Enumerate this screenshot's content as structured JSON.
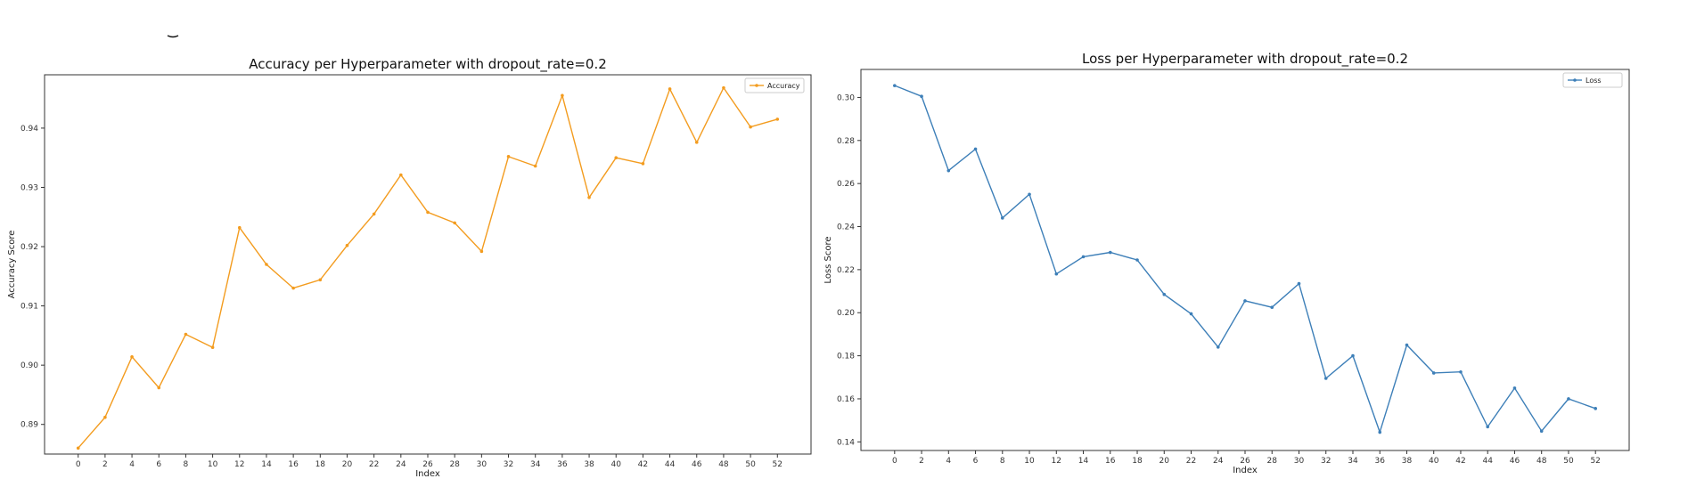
{
  "colors": {
    "accuracy": "#f39c1f",
    "loss": "#3d7fb8"
  },
  "chart_data": [
    {
      "type": "line",
      "title": "Accuracy per Hyperparameter with dropout_rate=0.2",
      "xlabel": "Index",
      "ylabel": "Accuracy Score",
      "legend": "top-right",
      "grid": false,
      "xlim": [
        -2.5,
        54.5
      ],
      "ylim": [
        0.885,
        0.949
      ],
      "x_ticks": [
        0,
        2,
        4,
        6,
        8,
        10,
        12,
        14,
        16,
        18,
        20,
        22,
        24,
        26,
        28,
        30,
        32,
        34,
        36,
        38,
        40,
        42,
        44,
        46,
        48,
        50,
        52
      ],
      "y_ticks": [
        0.89,
        0.9,
        0.91,
        0.92,
        0.93,
        0.94
      ],
      "y_tick_labels": [
        "0.89",
        "0.90",
        "0.91",
        "0.92",
        "0.93",
        "0.94"
      ],
      "series": [
        {
          "name": "Accuracy",
          "x": [
            0,
            2,
            4,
            6,
            8,
            10,
            12,
            14,
            16,
            18,
            20,
            22,
            24,
            26,
            28,
            30,
            32,
            34,
            36,
            38,
            40,
            42,
            44,
            46,
            48,
            50,
            52
          ],
          "values": [
            0.886,
            0.8912,
            0.9014,
            0.8962,
            0.9052,
            0.903,
            0.9232,
            0.917,
            0.913,
            0.9144,
            0.9202,
            0.9255,
            0.9321,
            0.9258,
            0.924,
            0.9192,
            0.9352,
            0.9336,
            0.9455,
            0.9283,
            0.935,
            0.934,
            0.9466,
            0.9376,
            0.9468,
            0.9402,
            0.9415
          ]
        }
      ]
    },
    {
      "type": "line",
      "title": "Loss per Hyperparameter with dropout_rate=0.2",
      "xlabel": "Index",
      "ylabel": "Loss Score",
      "legend": "top-right",
      "grid": false,
      "xlim": [
        -2.5,
        54.5
      ],
      "ylim": [
        0.136,
        0.313
      ],
      "x_ticks": [
        0,
        2,
        4,
        6,
        8,
        10,
        12,
        14,
        16,
        18,
        20,
        22,
        24,
        26,
        28,
        30,
        32,
        34,
        36,
        38,
        40,
        42,
        44,
        46,
        48,
        50,
        52
      ],
      "y_ticks": [
        0.14,
        0.16,
        0.18,
        0.2,
        0.22,
        0.24,
        0.26,
        0.28,
        0.3
      ],
      "y_tick_labels": [
        "0.14",
        "0.16",
        "0.18",
        "0.20",
        "0.22",
        "0.24",
        "0.26",
        "0.28",
        "0.30"
      ],
      "series": [
        {
          "name": "Loss",
          "x": [
            0,
            2,
            4,
            6,
            8,
            10,
            12,
            14,
            16,
            18,
            20,
            22,
            24,
            26,
            28,
            30,
            32,
            34,
            36,
            38,
            40,
            42,
            44,
            46,
            48,
            50,
            52
          ],
          "values": [
            0.3055,
            0.3005,
            0.266,
            0.276,
            0.244,
            0.255,
            0.218,
            0.226,
            0.228,
            0.2245,
            0.2085,
            0.1995,
            0.184,
            0.2055,
            0.2025,
            0.2135,
            0.1695,
            0.18,
            0.1445,
            0.185,
            0.172,
            0.1725,
            0.147,
            0.165,
            0.145,
            0.16,
            0.1555
          ]
        }
      ]
    }
  ]
}
